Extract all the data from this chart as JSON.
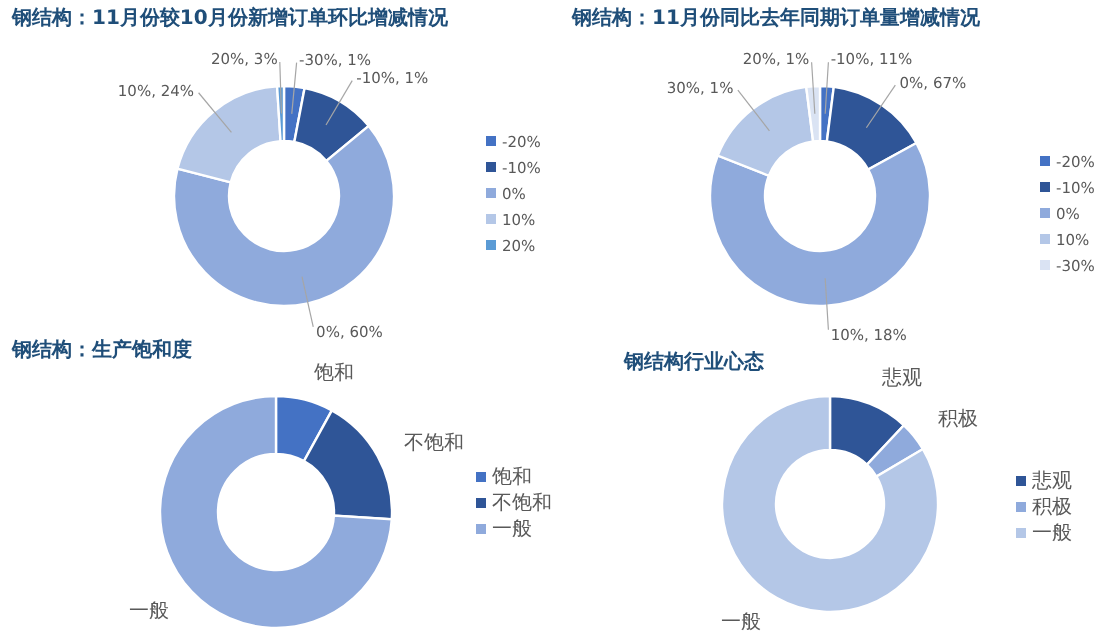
{
  "chart_data": [
    {
      "type": "donut",
      "title": "钢结构：11月份较10月份新增订单环比增减情况",
      "categories": [
        "-20%",
        "-10%",
        "0%",
        "10%",
        "20%"
      ],
      "values": [
        3,
        11,
        65,
        20,
        1
      ],
      "colors": [
        "#4472c4",
        "#2f5597",
        "#8faadc",
        "#b4c7e7",
        "#5b9bd5"
      ],
      "annotations": [
        "-30%, 1%",
        "-10%, 1%",
        "0%, 60%",
        "10%, 24%",
        "20%, 3%"
      ],
      "legend": "right"
    },
    {
      "type": "donut",
      "title": "钢结构：11月份同比去年同期订单量增减情况",
      "categories": [
        "-20%",
        "-10%",
        "0%",
        "10%",
        "-30%"
      ],
      "values": [
        2,
        15,
        64,
        17,
        2
      ],
      "colors": [
        "#4472c4",
        "#2f5597",
        "#8faadc",
        "#b4c7e7",
        "#dae3f3"
      ],
      "annotations": [
        "-10%, 11%",
        "0%, 67%",
        "10%, 18%",
        "30%, 1%",
        "20%, 1%"
      ],
      "legend": "right"
    },
    {
      "type": "donut",
      "title": "钢结构：生产饱和度",
      "categories": [
        "饱和",
        "不饱和",
        "一般"
      ],
      "values": [
        8,
        18,
        74
      ],
      "colors": [
        "#4472c4",
        "#2f5597",
        "#8faadc"
      ],
      "legend": "right"
    },
    {
      "type": "donut",
      "title": "钢结构行业心态",
      "categories": [
        "悲观",
        "积极",
        "一般"
      ],
      "values": [
        12,
        4.5,
        83.5
      ],
      "colors": [
        "#2f5597",
        "#8faadc",
        "#b4c7e7"
      ],
      "legend": "right"
    }
  ]
}
